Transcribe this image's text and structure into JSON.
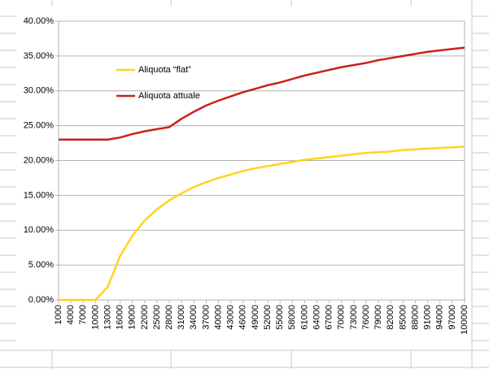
{
  "chart_data": {
    "type": "line",
    "x": [
      1000,
      4000,
      7000,
      10000,
      13000,
      16000,
      19000,
      22000,
      25000,
      28000,
      31000,
      34000,
      37000,
      40000,
      43000,
      46000,
      49000,
      52000,
      55000,
      58000,
      61000,
      64000,
      67000,
      70000,
      73000,
      76000,
      79000,
      82000,
      85000,
      88000,
      91000,
      94000,
      97000,
      100000
    ],
    "series": [
      {
        "name": "Aliquota “flat”",
        "color": "#ffd320",
        "values": [
          0,
          0,
          0,
          0,
          1.9,
          6.3,
          9.2,
          11.4,
          13.0,
          14.3,
          15.3,
          16.2,
          16.9,
          17.5,
          18.0,
          18.5,
          18.9,
          19.2,
          19.5,
          19.8,
          20.1,
          20.3,
          20.5,
          20.7,
          20.9,
          21.1,
          21.2,
          21.3,
          21.5,
          21.6,
          21.7,
          21.8,
          21.9,
          22.0
        ]
      },
      {
        "name": "Aliquota attuale",
        "color": "#c9211e",
        "values": [
          23,
          23,
          23,
          23,
          23,
          23.3,
          23.8,
          24.2,
          24.5,
          24.8,
          26.0,
          27.0,
          27.9,
          28.6,
          29.2,
          29.8,
          30.3,
          30.8,
          31.2,
          31.7,
          32.2,
          32.6,
          33.0,
          33.4,
          33.7,
          34.0,
          34.4,
          34.7,
          35.0,
          35.3,
          35.6,
          35.8,
          36.0,
          36.2
        ]
      }
    ],
    "xlim": [
      1000,
      100000
    ],
    "xticks": [
      1000,
      4000,
      7000,
      10000,
      13000,
      16000,
      19000,
      22000,
      25000,
      28000,
      31000,
      34000,
      37000,
      40000,
      43000,
      46000,
      49000,
      52000,
      55000,
      58000,
      61000,
      64000,
      67000,
      70000,
      73000,
      76000,
      79000,
      82000,
      85000,
      88000,
      91000,
      94000,
      97000,
      100000
    ],
    "ylim": [
      0,
      40
    ],
    "yticks": [
      {
        "value": 0,
        "label": "0.00%"
      },
      {
        "value": 5,
        "label": "5.00%"
      },
      {
        "value": 10,
        "label": "10.00%"
      },
      {
        "value": 15,
        "label": "15.00%"
      },
      {
        "value": 20,
        "label": "20.00%"
      },
      {
        "value": 25,
        "label": "25.00%"
      },
      {
        "value": 30,
        "label": "30.00%"
      },
      {
        "value": 35,
        "label": "35.00%"
      },
      {
        "value": 40,
        "label": "40.00%"
      }
    ],
    "grid": true,
    "legend": "upper-left"
  }
}
